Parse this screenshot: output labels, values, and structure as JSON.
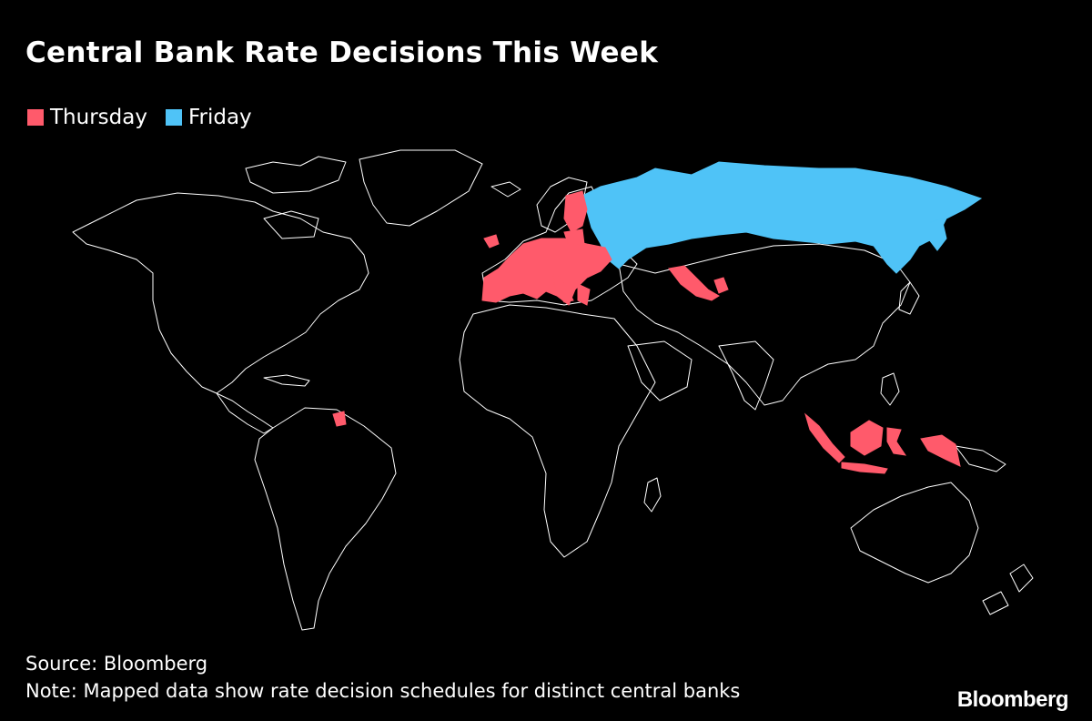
{
  "title": "Central Bank Rate Decisions This Week",
  "legend": [
    {
      "label": "Thursday",
      "color": "#ff5a6b"
    },
    {
      "label": "Friday",
      "color": "#4fc3f7"
    }
  ],
  "map": {
    "background": "#000000",
    "outline_color": "#ffffff",
    "highlight": {
      "thursday_color": "#ff5a6b",
      "friday_color": "#4fc3f7"
    }
  },
  "footer": {
    "source": "Source: Bloomberg",
    "note": "Note: Mapped data show rate decision schedules for distinct central banks"
  },
  "brand": "Bloomberg"
}
